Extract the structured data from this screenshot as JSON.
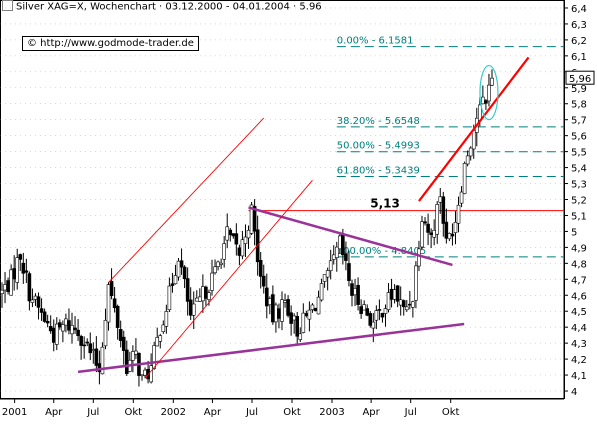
{
  "chart_title": "Silver XAG=X, Wochenchart · 03.12.2000 - 04.01.2004 · 5.96",
  "copyright": "© http://www.godmode-trader.de",
  "chart_data": {
    "type": "candlestick",
    "instrument": "Silver XAG=X",
    "interval": "Wochenchart",
    "date_range": [
      "03.12.2000",
      "04.01.2004"
    ],
    "last_price": 5.96,
    "y_scale": "linear",
    "ylim": [
      3.95,
      6.45
    ],
    "y_ticks": [
      4.0,
      4.1,
      4.2,
      4.3,
      4.4,
      4.5,
      4.6,
      4.7,
      4.8,
      4.9,
      5.0,
      5.1,
      5.2,
      5.3,
      5.4,
      5.5,
      5.6,
      5.7,
      5.8,
      5.9,
      6.0,
      6.1,
      6.2,
      6.3,
      6.4
    ],
    "y_tick_labels": [
      "4",
      "4,1",
      "4,2",
      "4,3",
      "4,4",
      "4,5",
      "4,6",
      "4,7",
      "4,8",
      "4,9",
      "5",
      "5,1",
      "5,2",
      "5,3",
      "5,4",
      "5,5",
      "5,6",
      "5,7",
      "5,8",
      "5,9",
      "6",
      "6,1",
      "6,2",
      "6,3",
      "6,4"
    ],
    "xlim": [
      "2000-12-03",
      "2004-01-04"
    ],
    "x_ticks": [
      {
        "label": "2001",
        "date": "2001-01-01"
      },
      {
        "label": "Apr",
        "date": "2001-04-01"
      },
      {
        "label": "Jul",
        "date": "2001-07-01"
      },
      {
        "label": "Okt",
        "date": "2001-10-01"
      },
      {
        "label": "2002",
        "date": "2002-01-01"
      },
      {
        "label": "Apr",
        "date": "2002-04-01"
      },
      {
        "label": "Jul",
        "date": "2002-07-01"
      },
      {
        "label": "Okt",
        "date": "2002-10-01"
      },
      {
        "label": "2003",
        "date": "2003-01-01"
      },
      {
        "label": "Apr",
        "date": "2003-04-01"
      },
      {
        "label": "Jul",
        "date": "2003-07-01"
      },
      {
        "label": "Okt",
        "date": "2003-10-01"
      }
    ],
    "price_path": [
      {
        "date": "2000-12-03",
        "price": 4.62
      },
      {
        "date": "2000-12-24",
        "price": 4.7
      },
      {
        "date": "2001-01-14",
        "price": 4.86
      },
      {
        "date": "2001-02-04",
        "price": 4.62
      },
      {
        "date": "2001-03-04",
        "price": 4.48
      },
      {
        "date": "2001-04-01",
        "price": 4.35
      },
      {
        "date": "2001-04-29",
        "price": 4.42
      },
      {
        "date": "2001-05-27",
        "price": 4.38
      },
      {
        "date": "2001-06-24",
        "price": 4.24
      },
      {
        "date": "2001-07-15",
        "price": 4.14
      },
      {
        "date": "2001-08-05",
        "price": 4.66
      },
      {
        "date": "2001-08-26",
        "price": 4.42
      },
      {
        "date": "2001-09-16",
        "price": 4.16
      },
      {
        "date": "2001-10-07",
        "price": 4.22
      },
      {
        "date": "2001-10-21",
        "price": 4.07
      },
      {
        "date": "2001-11-11",
        "price": 4.14
      },
      {
        "date": "2001-12-02",
        "price": 4.4
      },
      {
        "date": "2001-12-23",
        "price": 4.6
      },
      {
        "date": "2002-01-13",
        "price": 4.86
      },
      {
        "date": "2002-02-10",
        "price": 4.46
      },
      {
        "date": "2002-03-10",
        "price": 4.6
      },
      {
        "date": "2002-04-07",
        "price": 4.74
      },
      {
        "date": "2002-05-05",
        "price": 4.98
      },
      {
        "date": "2002-06-02",
        "price": 4.86
      },
      {
        "date": "2002-06-30",
        "price": 5.12
      },
      {
        "date": "2002-07-21",
        "price": 4.7
      },
      {
        "date": "2002-08-18",
        "price": 4.46
      },
      {
        "date": "2002-09-15",
        "price": 4.56
      },
      {
        "date": "2002-10-13",
        "price": 4.38
      },
      {
        "date": "2002-11-03",
        "price": 4.46
      },
      {
        "date": "2002-12-01",
        "price": 4.58
      },
      {
        "date": "2002-12-29",
        "price": 4.76
      },
      {
        "date": "2003-01-19",
        "price": 4.92
      },
      {
        "date": "2003-02-16",
        "price": 4.62
      },
      {
        "date": "2003-03-16",
        "price": 4.52
      },
      {
        "date": "2003-04-06",
        "price": 4.42
      },
      {
        "date": "2003-04-27",
        "price": 4.52
      },
      {
        "date": "2003-05-25",
        "price": 4.62
      },
      {
        "date": "2003-06-15",
        "price": 4.5
      },
      {
        "date": "2003-07-06",
        "price": 4.6
      },
      {
        "date": "2003-07-27",
        "price": 5.12
      },
      {
        "date": "2003-08-17",
        "price": 4.96
      },
      {
        "date": "2003-09-07",
        "price": 5.24
      },
      {
        "date": "2003-09-21",
        "price": 4.92
      },
      {
        "date": "2003-10-12",
        "price": 5.08
      },
      {
        "date": "2003-11-02",
        "price": 5.42
      },
      {
        "date": "2003-11-30",
        "price": 5.72
      },
      {
        "date": "2003-12-21",
        "price": 5.84
      },
      {
        "date": "2004-01-04",
        "price": 5.96
      }
    ],
    "fibonacci_levels": [
      {
        "label": "0.00% - 6.1581",
        "value": 6.1581
      },
      {
        "label": "38.20% - 5.6548",
        "value": 5.6548
      },
      {
        "label": "50.00% - 5.4993",
        "value": 5.4993
      },
      {
        "label": "61.80% - 5.3439",
        "value": 5.3439
      },
      {
        "label": "100.00% - 4.8405",
        "value": 4.8405
      }
    ],
    "annotations": [
      {
        "label": "5,13",
        "type": "horizontal_line",
        "value": 5.13,
        "color": "#ff0000"
      }
    ],
    "trendlines": [
      {
        "name": "lower-support",
        "color": "#993399",
        "points": [
          {
            "date": "2001-05-27",
            "price": 4.12
          },
          {
            "date": "2003-11-01",
            "price": 4.42
          }
        ]
      },
      {
        "name": "triangle-resistance",
        "color": "#993399",
        "points": [
          {
            "date": "2002-06-23",
            "price": 5.15
          },
          {
            "date": "2003-10-05",
            "price": 4.79
          }
        ]
      },
      {
        "name": "channel-upper",
        "color": "#ff0000",
        "points": [
          {
            "date": "2001-08-05",
            "price": 4.68
          },
          {
            "date": "2002-07-28",
            "price": 5.71
          }
        ]
      },
      {
        "name": "channel-lower",
        "color": "#ff0000",
        "points": [
          {
            "date": "2001-10-28",
            "price": 4.08
          },
          {
            "date": "2002-11-17",
            "price": 5.32
          }
        ]
      },
      {
        "name": "uptrend",
        "color": "#ff0000",
        "points": [
          {
            "date": "2003-07-20",
            "price": 5.19
          },
          {
            "date": "2004-03-28",
            "price": 6.09
          }
        ]
      }
    ],
    "highlight": {
      "type": "ellipse",
      "color": "#33cccc",
      "center": {
        "date": "2003-12-28",
        "price": 5.87
      }
    },
    "colors": {
      "candle_up": "#ffffff",
      "candle_down": "#000000",
      "wick": "#000000",
      "grid": "#808080",
      "fib_line": "#007f7f",
      "fib_label": "#008080",
      "background": "#ffffff"
    },
    "grid": true
  }
}
